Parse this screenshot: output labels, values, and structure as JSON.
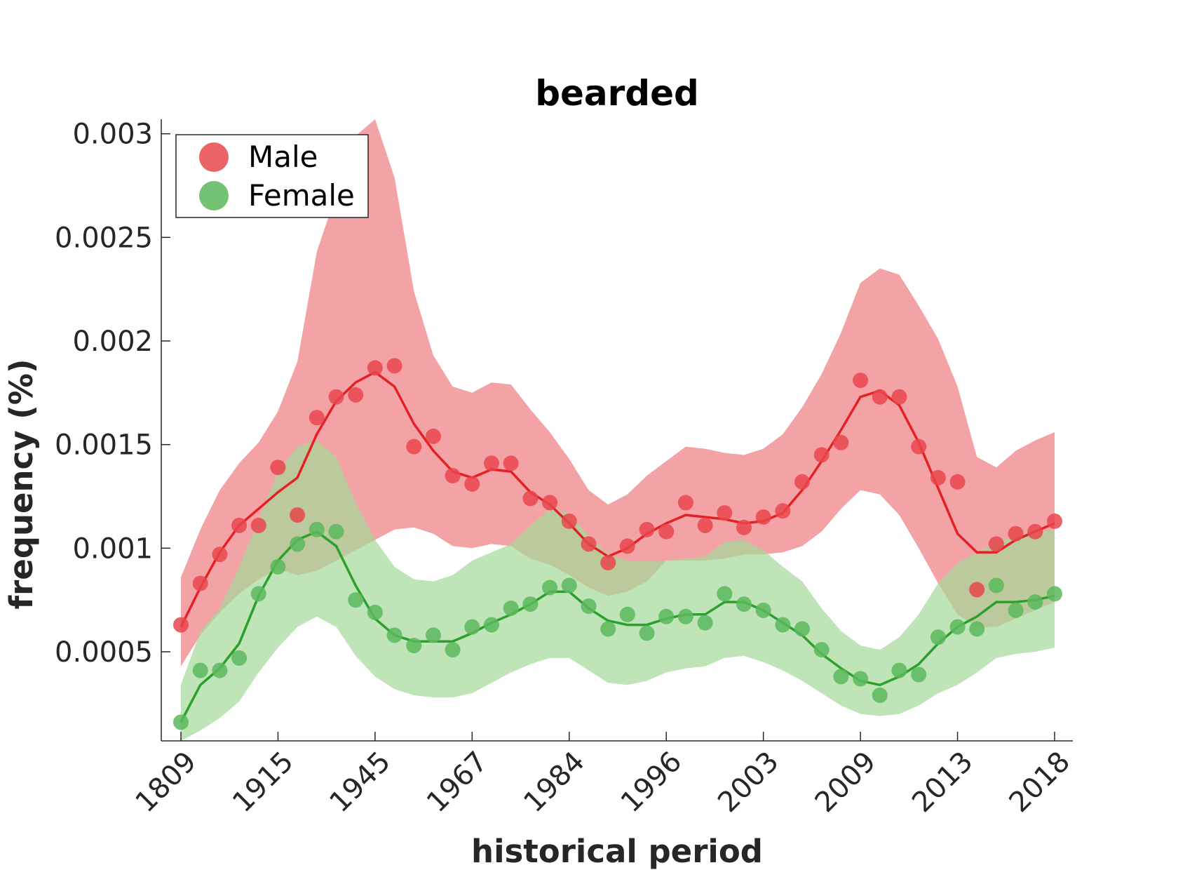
{
  "chart_data": {
    "type": "line",
    "title": "bearded",
    "xlabel": "historical period",
    "ylabel": "frequency (%)",
    "ylim": [
      7e-05,
      0.00307
    ],
    "yticks": [
      0.0005,
      0.001,
      0.0015,
      0.002,
      0.0025,
      0.003
    ],
    "ytick_labels": [
      "0.0005",
      "0.001",
      "0.0015",
      "0.002",
      "0.0025",
      "0.003"
    ],
    "xtick_labels": [
      "1809",
      "1915",
      "1945",
      "1967",
      "1984",
      "1996",
      "2003",
      "2009",
      "2013",
      "2018"
    ],
    "xtick_index": [
      0,
      5,
      10,
      15,
      20,
      25,
      30,
      35,
      40,
      45
    ],
    "n_points": 46,
    "legend_position": "top-left",
    "series": [
      {
        "name": "Male",
        "color": "#e52025",
        "marker_color": "#e8474c",
        "band_color": "#ee7c80",
        "points": [
          0.00063,
          0.00083,
          0.00097,
          0.00111,
          0.00111,
          0.00139,
          0.00116,
          0.00163,
          0.00173,
          0.00174,
          0.00187,
          0.00188,
          0.00149,
          0.00154,
          0.00135,
          0.00131,
          0.00141,
          0.00141,
          0.00124,
          0.00122,
          0.00113,
          0.00102,
          0.00093,
          0.00101,
          0.00109,
          0.00108,
          0.00122,
          0.00111,
          0.00117,
          0.0011,
          0.00115,
          0.00118,
          0.00132,
          0.00145,
          0.00151,
          0.00181,
          0.00173,
          0.00173,
          0.00149,
          0.00134,
          0.00132,
          0.0008,
          0.00102,
          0.00107,
          0.00108,
          0.00113
        ],
        "line": [
          0.00062,
          0.00081,
          0.00098,
          0.00111,
          0.00119,
          0.00127,
          0.00134,
          0.00155,
          0.00171,
          0.0018,
          0.00185,
          0.00178,
          0.0016,
          0.00147,
          0.00137,
          0.00134,
          0.00138,
          0.00137,
          0.00127,
          0.00121,
          0.00112,
          0.00102,
          0.00096,
          0.001,
          0.00107,
          0.00112,
          0.00116,
          0.00115,
          0.00114,
          0.00112,
          0.00113,
          0.00117,
          0.00128,
          0.00142,
          0.00157,
          0.00173,
          0.00176,
          0.00169,
          0.00151,
          0.00129,
          0.00107,
          0.00098,
          0.00098,
          0.00104,
          0.00108,
          0.00112
        ],
        "upper": [
          0.00086,
          0.00109,
          0.00128,
          0.00141,
          0.00151,
          0.00166,
          0.0019,
          0.00243,
          0.00271,
          0.00299,
          0.00307,
          0.00279,
          0.00224,
          0.00193,
          0.00178,
          0.00175,
          0.0018,
          0.00179,
          0.00167,
          0.00156,
          0.00143,
          0.00128,
          0.00121,
          0.00126,
          0.00135,
          0.00142,
          0.00149,
          0.00148,
          0.00146,
          0.00145,
          0.00148,
          0.00155,
          0.00168,
          0.00184,
          0.00204,
          0.00228,
          0.00235,
          0.00232,
          0.00217,
          0.00201,
          0.00178,
          0.00144,
          0.00139,
          0.00147,
          0.00152,
          0.00156
        ],
        "lower": [
          0.00043,
          0.00058,
          0.00069,
          0.00078,
          0.00085,
          0.0009,
          0.00087,
          0.00089,
          0.00094,
          0.00099,
          0.00104,
          0.00109,
          0.0011,
          0.00107,
          0.00101,
          0.001,
          0.00102,
          0.00101,
          0.00095,
          0.00092,
          0.00087,
          0.00081,
          0.00077,
          0.00079,
          0.00084,
          0.00094,
          0.00094,
          0.00094,
          0.00095,
          0.00097,
          0.00097,
          0.00098,
          0.00101,
          0.00108,
          0.00119,
          0.00128,
          0.00126,
          0.00116,
          0.001,
          0.00083,
          0.00068,
          0.00062,
          0.00062,
          0.00066,
          0.0007,
          0.00074
        ]
      },
      {
        "name": "Female",
        "color": "#2ca02c",
        "marker_color": "#5cb85c",
        "band_color": "#a3d89a",
        "points": [
          0.00016,
          0.00041,
          0.00041,
          0.00047,
          0.00078,
          0.00091,
          0.00102,
          0.00109,
          0.00108,
          0.00075,
          0.00069,
          0.00058,
          0.00053,
          0.00058,
          0.00051,
          0.00062,
          0.00063,
          0.00071,
          0.00073,
          0.00081,
          0.00082,
          0.00072,
          0.00061,
          0.00068,
          0.00059,
          0.00067,
          0.00067,
          0.00064,
          0.00078,
          0.00073,
          0.0007,
          0.00063,
          0.00061,
          0.00051,
          0.00038,
          0.00037,
          0.00029,
          0.00041,
          0.00039,
          0.00057,
          0.00062,
          0.00061,
          0.00082,
          0.0007,
          0.00074,
          0.00078
        ],
        "line": [
          0.00016,
          0.00034,
          0.00042,
          0.00054,
          0.00077,
          0.00094,
          0.00104,
          0.00108,
          0.00101,
          0.00082,
          0.00066,
          0.00058,
          0.00055,
          0.00055,
          0.00055,
          0.00059,
          0.00064,
          0.00068,
          0.00073,
          0.00079,
          0.00079,
          0.00071,
          0.00065,
          0.00063,
          0.00063,
          0.00066,
          0.00068,
          0.00068,
          0.00074,
          0.00074,
          0.0007,
          0.00064,
          0.00058,
          0.00049,
          0.00042,
          0.00036,
          0.00034,
          0.00038,
          0.00044,
          0.00054,
          0.00062,
          0.00067,
          0.00074,
          0.00074,
          0.00075,
          0.00077
        ],
        "upper": [
          0.00034,
          0.0006,
          0.00071,
          0.00091,
          0.00114,
          0.00137,
          0.00149,
          0.00152,
          0.00144,
          0.00122,
          0.00104,
          0.00091,
          0.00085,
          0.00084,
          0.00087,
          0.00094,
          0.00098,
          0.00102,
          0.00111,
          0.00119,
          0.00117,
          0.00106,
          0.00097,
          0.00094,
          0.00094,
          0.00094,
          0.00095,
          0.00096,
          0.00103,
          0.00104,
          0.00099,
          0.00091,
          0.00084,
          0.00071,
          0.0006,
          0.00053,
          0.00051,
          0.00057,
          0.00068,
          0.00083,
          0.00093,
          0.00098,
          0.00103,
          0.00106,
          0.00108,
          0.00109
        ],
        "lower": [
          7e-05,
          0.00012,
          0.00018,
          0.00026,
          0.0004,
          0.00052,
          0.00062,
          0.00067,
          0.00062,
          0.00048,
          0.00038,
          0.00032,
          0.00029,
          0.00028,
          0.00028,
          0.0003,
          0.00035,
          0.0004,
          0.00044,
          0.00047,
          0.00047,
          0.00041,
          0.00035,
          0.00034,
          0.00036,
          0.0004,
          0.00042,
          0.00043,
          0.00047,
          0.00048,
          0.00045,
          0.00041,
          0.00036,
          0.0003,
          0.00024,
          0.0002,
          0.00019,
          0.0002,
          0.00024,
          0.0003,
          0.00034,
          0.0004,
          0.00047,
          0.00049,
          0.0005,
          0.00052
        ]
      }
    ]
  }
}
